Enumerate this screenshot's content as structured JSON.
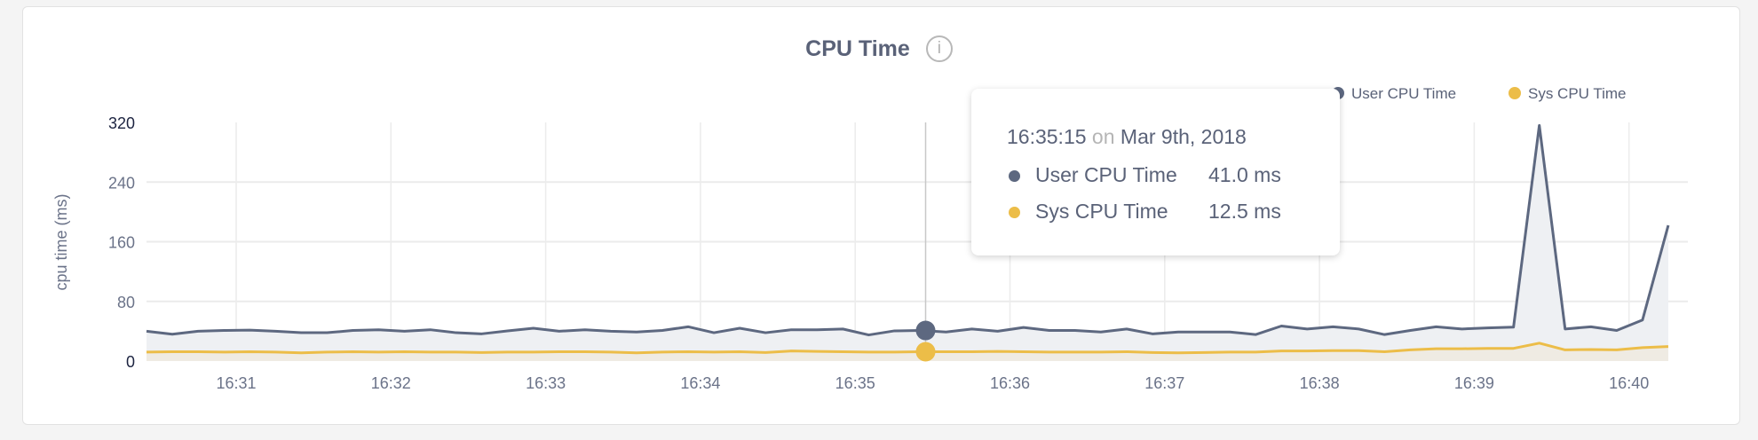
{
  "chart_data": {
    "type": "area",
    "title": "CPU Time",
    "ylabel": "cpu time (ms)",
    "xlabel": "",
    "ylim": [
      0,
      320
    ],
    "yticks": [
      "0",
      "80",
      "160",
      "240",
      "320"
    ],
    "xticks": [
      "16:31",
      "16:32",
      "16:33",
      "16:34",
      "16:35",
      "16:36",
      "16:37",
      "16:38",
      "16:39",
      "16:40"
    ],
    "grid": true,
    "legend_position": "top-right",
    "x_start": "16:30:15",
    "x_step_seconds": 10,
    "series": [
      {
        "name": "User CPU Time",
        "color": "#5d6880",
        "fill": "#eef0f3",
        "values": [
          40,
          36,
          40,
          41,
          41.5,
          40,
          38,
          38,
          41,
          42,
          40,
          42,
          38,
          36.5,
          40.5,
          44,
          40,
          42,
          40,
          39,
          41,
          46,
          38,
          44,
          38,
          42,
          42,
          43,
          35,
          40.5,
          41,
          39,
          43,
          40,
          45,
          41,
          41,
          39,
          43,
          36.5,
          39,
          39,
          39,
          35.5,
          47,
          43,
          46,
          43,
          35.5,
          41,
          46,
          43,
          44.5,
          45.5,
          316,
          43,
          46,
          41,
          55,
          182
        ]
      },
      {
        "name": "Sys CPU Time",
        "color": "#ecbd48",
        "fill": "#efebe3",
        "values": [
          12,
          12.5,
          12.5,
          12,
          12.5,
          12,
          11,
          12,
          12.5,
          12,
          12.5,
          12,
          12,
          11.5,
          12,
          12,
          12.5,
          12.5,
          12,
          11,
          12,
          12.5,
          12,
          12.5,
          11.5,
          13.5,
          13,
          12.5,
          12,
          12,
          12.5,
          12.5,
          12.5,
          13,
          12.5,
          12,
          12,
          12,
          12.5,
          11.5,
          11,
          11.5,
          12,
          12,
          13.5,
          13.5,
          14,
          14,
          12.5,
          15,
          16.5,
          16.5,
          17,
          17,
          24,
          15,
          15.5,
          15,
          18,
          19.5
        ]
      }
    ]
  },
  "tooltip": {
    "time": "16:35:15",
    "on": "on",
    "date": "Mar 9th, 2018",
    "hover_index": 30,
    "rows": [
      {
        "label": "User CPU Time",
        "value": "41.0 ms"
      },
      {
        "label": "Sys CPU Time",
        "value": "12.5 ms"
      }
    ]
  },
  "info_icon": "info-circle-icon"
}
